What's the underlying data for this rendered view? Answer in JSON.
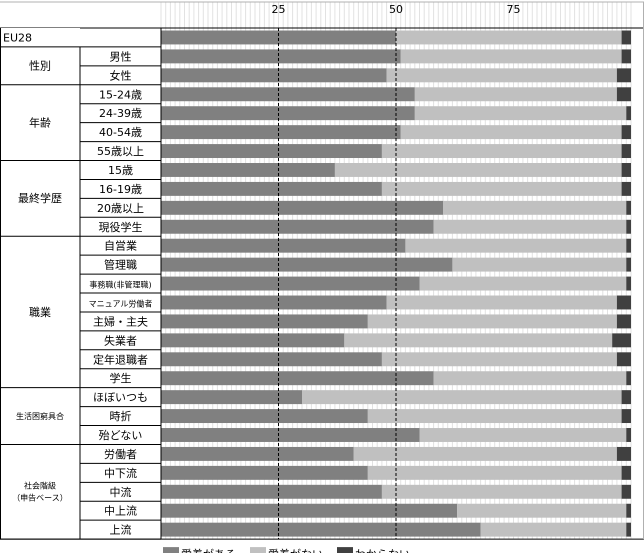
{
  "chart_data": {
    "type": "bar",
    "orientation": "horizontal",
    "stacked": true,
    "xlim": [
      0,
      100
    ],
    "x_ticks": [
      25,
      50,
      75
    ],
    "grid": true,
    "legend_position": "bottom",
    "colors": {
      "愛着がある": "#808080",
      "愛着がない": "#c0c0c0",
      "わからない": "#404040"
    },
    "groups": [
      {
        "label": "",
        "categories": [
          "EU28"
        ]
      },
      {
        "label": "性別",
        "categories": [
          "男性",
          "女性"
        ]
      },
      {
        "label": "年齢",
        "categories": [
          "15-24歳",
          "24-39歳",
          "40-54歳",
          "55歳以上"
        ]
      },
      {
        "label": "最終学歴",
        "categories": [
          "15歳",
          "16-19歳",
          "20歳以上",
          "現役学生"
        ]
      },
      {
        "label": "職業",
        "categories": [
          "自営業",
          "管理職",
          "事務職(非管理職)",
          "マニュアル労働者",
          "主婦・主夫",
          "失業者",
          "定年退職者",
          "学生"
        ]
      },
      {
        "label": "生活困窮具合",
        "categories": [
          "ほぼいつも",
          "時折",
          "殆どない"
        ]
      },
      {
        "label": "社会階級\n（申告ベース）",
        "categories": [
          "労働者",
          "中下流",
          "中流",
          "中上流",
          "上流"
        ]
      }
    ],
    "series": [
      {
        "name": "愛着がある",
        "values": [
          50,
          51,
          48,
          54,
          54,
          51,
          47,
          37,
          47,
          60,
          58,
          52,
          62,
          55,
          48,
          44,
          39,
          47,
          58,
          30,
          44,
          55,
          41,
          44,
          47,
          63,
          68
        ]
      },
      {
        "name": "愛着がない",
        "values": [
          48,
          47,
          49,
          43,
          45,
          47,
          51,
          61,
          51,
          39,
          41,
          47,
          37,
          44,
          49,
          53,
          57,
          50,
          41,
          68,
          54,
          44,
          56,
          54,
          51,
          36,
          31
        ]
      },
      {
        "name": "わからない",
        "values": [
          2,
          2,
          3,
          3,
          1,
          2,
          2,
          2,
          2,
          1,
          1,
          1,
          1,
          1,
          3,
          3,
          4,
          3,
          1,
          2,
          2,
          1,
          3,
          2,
          2,
          1,
          1
        ]
      }
    ]
  }
}
